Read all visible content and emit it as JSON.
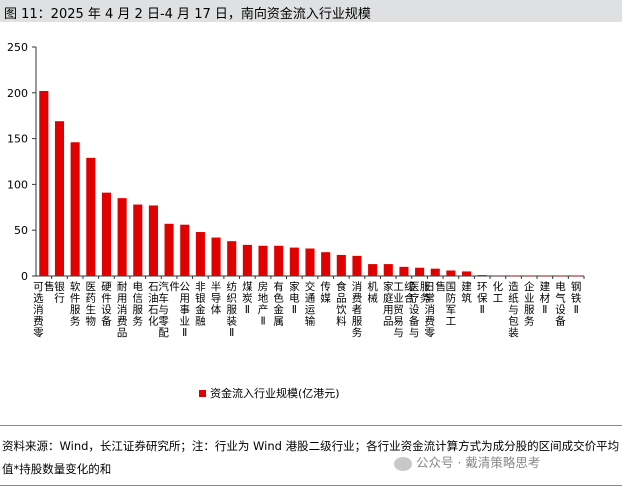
{
  "figure_title": "图  11：2025 年 4 月 2 日-4 月 17 日，南向资金流入行业规模",
  "source_note": "资料来源：Wind，长江证券研究所；注：行业为 Wind 港股二级行业；各行业资金流计算方式为成分股的区间成交价平均值*持股数量变化的和",
  "watermark": "公众号 · 戴清策略思考",
  "colors": {
    "bar": "#e00000",
    "title_bg": "#dfe0e2"
  },
  "chart_data": {
    "type": "bar",
    "categories": [
      "可选消费零售",
      "银行",
      "软件服务",
      "医药生物",
      "硬件设备",
      "耐用消费品",
      "电信服务",
      "石油石化",
      "汽车与零配件",
      "公用事业Ⅱ",
      "非银金融",
      "半导体",
      "纺织服装Ⅱ",
      "煤炭Ⅱ",
      "房地产Ⅱ",
      "有色金属",
      "家电Ⅱ",
      "交通运输",
      "传媒",
      "食品饮料",
      "消费者服务",
      "机械",
      "家庭用品",
      "工业贸易与综合",
      "医疗设备与服务",
      "日常消费零售",
      "国防军工",
      "建筑",
      "环保Ⅱ",
      "化工",
      "造纸与包装",
      "企业服务",
      "建材Ⅱ",
      "电气设备",
      "钢铁Ⅱ"
    ],
    "series": [
      {
        "name": "资金流入行业规模(亿港元)",
        "values": [
          202,
          169,
          146,
          129,
          91,
          85,
          78,
          77,
          57,
          56,
          48,
          42,
          38,
          34,
          33,
          33,
          31,
          30,
          26,
          23,
          22,
          13,
          13,
          10,
          9,
          8,
          6,
          5,
          1,
          0.5,
          0.3,
          0.3,
          0.3,
          0.3,
          0.3
        ]
      }
    ],
    "ylim": [
      0,
      250
    ],
    "yticks": [
      "0",
      "50",
      "100",
      "150",
      "200",
      "250"
    ],
    "legend_position": "bottom",
    "grid": false
  }
}
